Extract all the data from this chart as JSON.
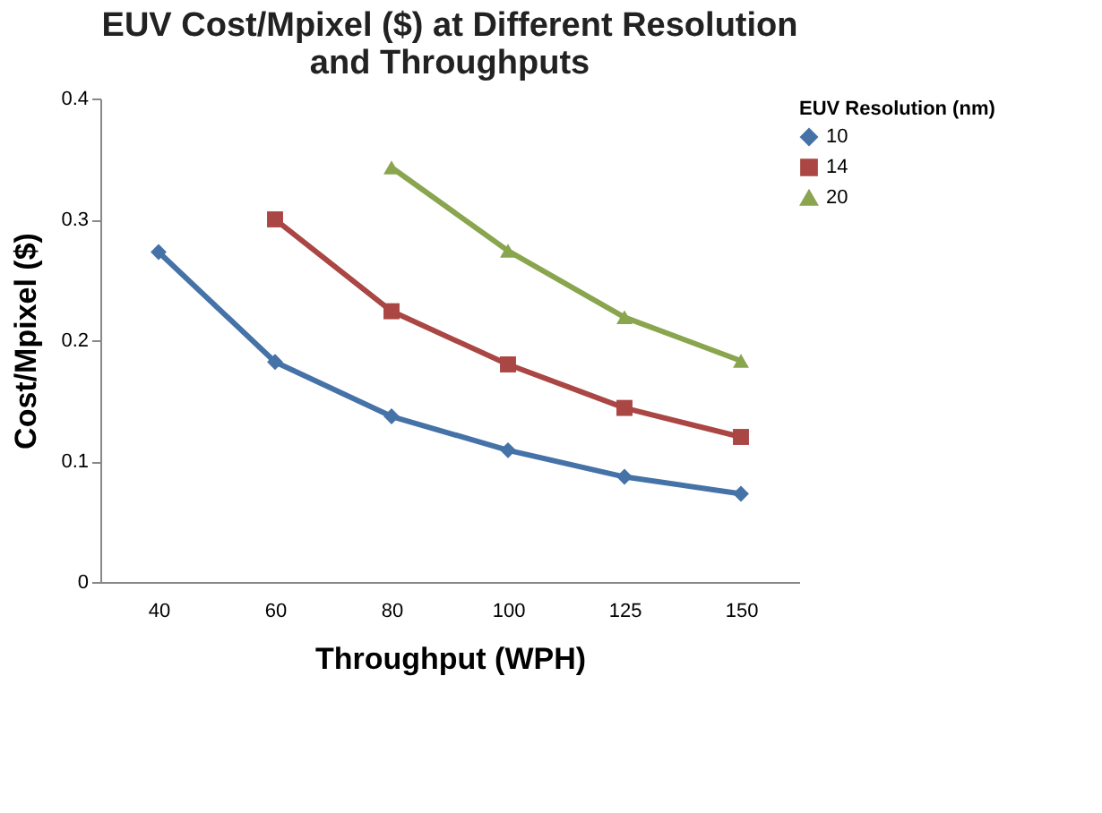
{
  "chart_data": {
    "type": "line",
    "title": "EUV Cost/Mpixel ($) at Different Resolution and Throughputs",
    "xlabel": "Throughput  (WPH)",
    "ylabel": "Cost/Mpixel  ($)",
    "legend_title": "EUV Resolution (nm)",
    "legend": "right",
    "grid": false,
    "categories": [
      "40",
      "60",
      "80",
      "100",
      "125",
      "150"
    ],
    "ylim": [
      0,
      0.4
    ],
    "yticks": [
      0,
      0.1,
      0.2,
      0.3,
      0.4
    ],
    "series": [
      {
        "name": "10",
        "color": "#4572a7",
        "marker": "diamond",
        "values": [
          0.273,
          0.182,
          0.137,
          0.109,
          0.087,
          0.073
        ]
      },
      {
        "name": "14",
        "color": "#aa4643",
        "marker": "square",
        "values": [
          null,
          0.3,
          0.224,
          0.18,
          0.144,
          0.12
        ]
      },
      {
        "name": "20",
        "color": "#89a54e",
        "marker": "triangle",
        "values": [
          null,
          null,
          0.343,
          0.274,
          0.219,
          0.183
        ]
      }
    ]
  }
}
